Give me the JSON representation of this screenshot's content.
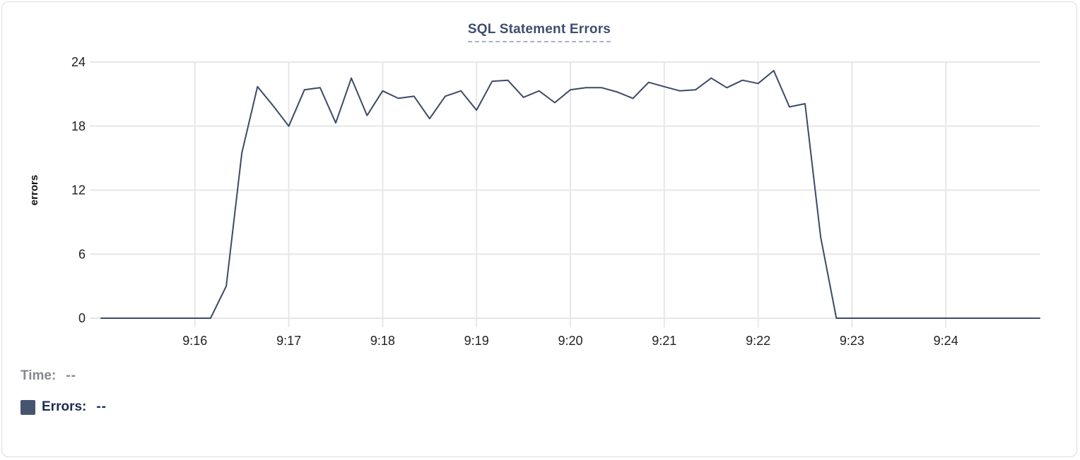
{
  "title": "SQL Statement Errors",
  "legend": {
    "time_label": "Time:",
    "time_value": "--",
    "errors_label": "Errors:",
    "errors_value": "--",
    "swatch_color": "#475471"
  },
  "colors": {
    "line": "#3d4a66",
    "grid": "#e7e7e9",
    "tick_text": "#202124",
    "axis_title": "#111111"
  },
  "chart_data": {
    "type": "line",
    "title": "SQL Statement Errors",
    "ylabel": "errors",
    "xlabel": "",
    "x_unit": "seconds since 9:15:00",
    "xlim": [
      0,
      600
    ],
    "ylim": [
      0,
      24
    ],
    "grid": true,
    "legend_position": "bottom-left",
    "y_ticks": [
      0,
      6,
      12,
      18,
      24
    ],
    "x_ticks": [
      {
        "t": 60,
        "label": "9:16"
      },
      {
        "t": 120,
        "label": "9:17"
      },
      {
        "t": 180,
        "label": "9:18"
      },
      {
        "t": 240,
        "label": "9:19"
      },
      {
        "t": 300,
        "label": "9:20"
      },
      {
        "t": 360,
        "label": "9:21"
      },
      {
        "t": 420,
        "label": "9:22"
      },
      {
        "t": 480,
        "label": "9:23"
      },
      {
        "t": 540,
        "label": "9:24"
      }
    ],
    "series": [
      {
        "name": "Errors",
        "points": [
          [
            0,
            0
          ],
          [
            10,
            0
          ],
          [
            20,
            0
          ],
          [
            30,
            0
          ],
          [
            40,
            0
          ],
          [
            50,
            0
          ],
          [
            60,
            0
          ],
          [
            70,
            0
          ],
          [
            80,
            3
          ],
          [
            90,
            15.5
          ],
          [
            100,
            21.7
          ],
          [
            110,
            19.9
          ],
          [
            120,
            18
          ],
          [
            130,
            21.4
          ],
          [
            140,
            21.6
          ],
          [
            150,
            18.3
          ],
          [
            160,
            22.5
          ],
          [
            170,
            19
          ],
          [
            180,
            21.3
          ],
          [
            190,
            20.6
          ],
          [
            200,
            20.8
          ],
          [
            210,
            18.7
          ],
          [
            220,
            20.8
          ],
          [
            230,
            21.3
          ],
          [
            240,
            19.5
          ],
          [
            250,
            22.2
          ],
          [
            260,
            22.3
          ],
          [
            270,
            20.7
          ],
          [
            280,
            21.3
          ],
          [
            290,
            20.2
          ],
          [
            300,
            21.4
          ],
          [
            310,
            21.6
          ],
          [
            320,
            21.6
          ],
          [
            330,
            21.2
          ],
          [
            340,
            20.6
          ],
          [
            350,
            22.1
          ],
          [
            360,
            21.7
          ],
          [
            370,
            21.3
          ],
          [
            380,
            21.4
          ],
          [
            390,
            22.5
          ],
          [
            400,
            21.6
          ],
          [
            410,
            22.3
          ],
          [
            420,
            22.0
          ],
          [
            430,
            23.2
          ],
          [
            440,
            19.8
          ],
          [
            450,
            20.1
          ],
          [
            460,
            7.6
          ],
          [
            470,
            0
          ],
          [
            480,
            0
          ],
          [
            490,
            0
          ],
          [
            500,
            0
          ],
          [
            510,
            0
          ],
          [
            520,
            0
          ],
          [
            530,
            0
          ],
          [
            540,
            0
          ],
          [
            550,
            0
          ],
          [
            560,
            0
          ],
          [
            570,
            0
          ],
          [
            580,
            0
          ],
          [
            590,
            0
          ],
          [
            600,
            0
          ]
        ]
      }
    ]
  }
}
